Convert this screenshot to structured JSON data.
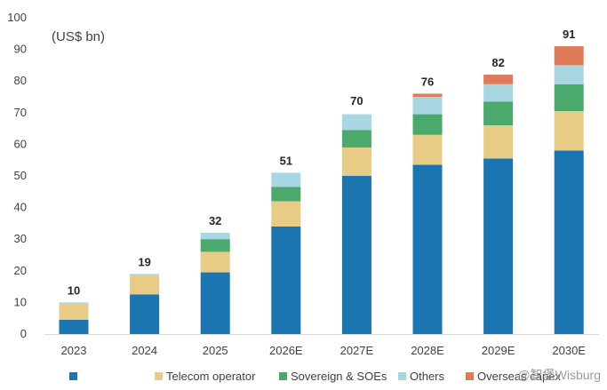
{
  "chart_data": {
    "type": "bar",
    "stacked": true,
    "unit_label": "(US$ bn)",
    "categories": [
      "2023",
      "2024",
      "2025",
      "2026E",
      "2027E",
      "2028E",
      "2029E",
      "2030E"
    ],
    "totals": [
      10,
      19,
      32,
      51,
      70,
      76,
      82,
      91
    ],
    "series": [
      {
        "name": "",
        "color": "#1b75b0",
        "values": [
          4.5,
          12.5,
          19.5,
          34.0,
          50.0,
          53.5,
          55.5,
          58.0
        ]
      },
      {
        "name": "Telecom operator",
        "color": "#e8cc85",
        "values": [
          5.0,
          6.0,
          6.5,
          8.0,
          9.0,
          9.5,
          10.5,
          12.5
        ]
      },
      {
        "name": "Sovereign & SOEs",
        "color": "#4aa96c",
        "values": [
          0,
          0,
          4.0,
          4.5,
          5.5,
          6.5,
          7.5,
          8.5
        ]
      },
      {
        "name": "Others",
        "color": "#a8d6e2",
        "values": [
          0.5,
          0.5,
          2.0,
          4.5,
          5.0,
          5.5,
          5.5,
          6.0
        ]
      },
      {
        "name": "Overseas capex",
        "color": "#e07b5a",
        "values": [
          0,
          0,
          0,
          0,
          0,
          1.0,
          3.0,
          6.0
        ]
      }
    ],
    "ylim": [
      0,
      100
    ],
    "yticks": [
      0,
      10,
      20,
      30,
      40,
      50,
      60,
      70,
      80,
      90,
      100
    ],
    "grid": false,
    "legend_position": "bottom"
  },
  "watermark": "@智堡Wisburg"
}
